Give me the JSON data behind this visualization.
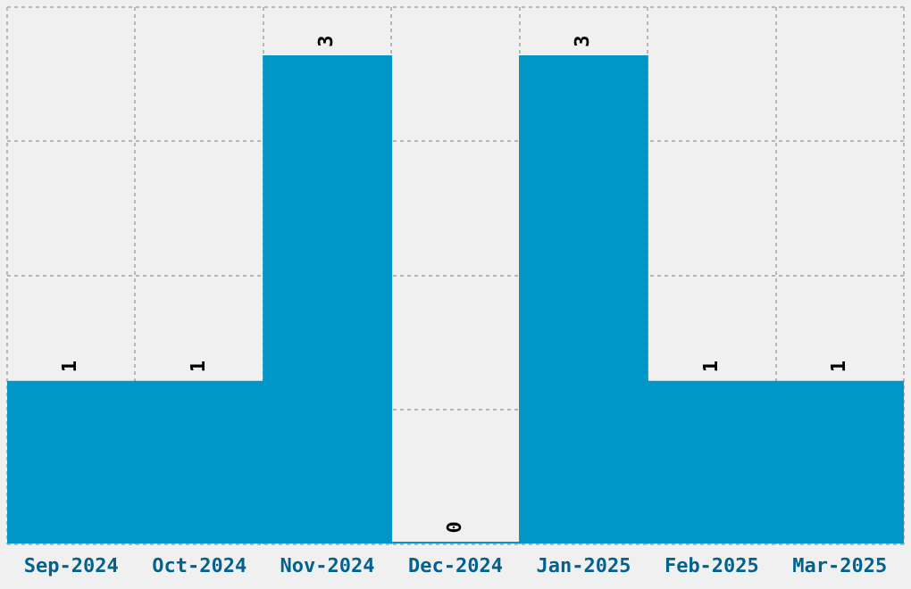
{
  "chart_data": {
    "type": "bar",
    "categories": [
      "Sep-2024",
      "Oct-2024",
      "Nov-2024",
      "Dec-2024",
      "Jan-2025",
      "Feb-2025",
      "Mar-2025"
    ],
    "values": [
      1,
      1,
      3,
      0,
      3,
      1,
      1
    ],
    "color": "#0096c8",
    "ylim": [
      0,
      3.3
    ],
    "yticks": [
      {
        "value": 0,
        "label": null
      },
      {
        "value": 0.825,
        "label": null
      },
      {
        "value": 1.65,
        "label": null
      },
      {
        "value": 2.475,
        "label": null
      },
      {
        "value": 3.3,
        "label": null
      }
    ],
    "grid": true,
    "tick_labels": "x",
    "data_labels": true,
    "legend": false
  }
}
